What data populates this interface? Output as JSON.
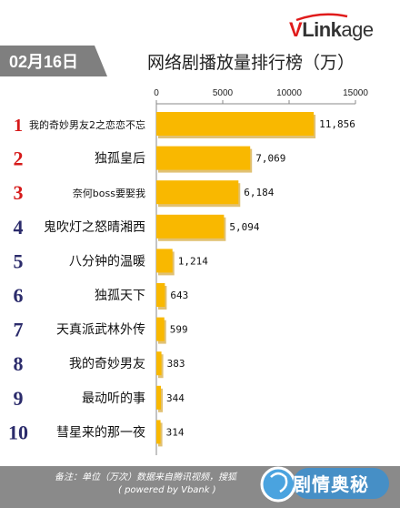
{
  "brand": {
    "logo_v": "V",
    "logo_link": "Link",
    "logo_age": "age"
  },
  "header": {
    "date": "02月16日",
    "title": "网络剧播放量排行榜（万）"
  },
  "colors": {
    "bar": "#f9b800",
    "bar_shadow": "#c98e00",
    "rank_top3": "#d61a1a",
    "rank_other": "#2b2b6b",
    "date_bg": "#7f7f7f"
  },
  "chart_data": {
    "type": "bar",
    "orientation": "horizontal",
    "categories": [
      "我的奇妙男友2之恋恋不忘",
      "独孤皇后",
      "奈何boss要娶我",
      "鬼吹灯之怒晴湘西",
      "八分钟的温暖",
      "独孤天下",
      "天真派武林外传",
      "我的奇妙男友",
      "最动听的事",
      "彗星来的那一夜"
    ],
    "ranks": [
      "1",
      "2",
      "3",
      "4",
      "5",
      "6",
      "7",
      "8",
      "9",
      "10"
    ],
    "values": [
      11856,
      7069,
      6184,
      5094,
      1214,
      643,
      599,
      383,
      344,
      314
    ],
    "value_labels": [
      "11,856",
      "7,069",
      "6,184",
      "5,094",
      "1,214",
      "643",
      "599",
      "383",
      "344",
      "314"
    ],
    "xticks": [
      0,
      5000,
      10000,
      15000
    ],
    "xtick_labels": [
      "0",
      "5000",
      "10000",
      "15000"
    ],
    "xlim": [
      0,
      15000
    ]
  },
  "footer": {
    "note_line1": "备注：单位（万次）数据来自腾讯视频，搜狐",
    "note_line2": "( powered by Vbank )",
    "badge": "剧情奥秘"
  }
}
